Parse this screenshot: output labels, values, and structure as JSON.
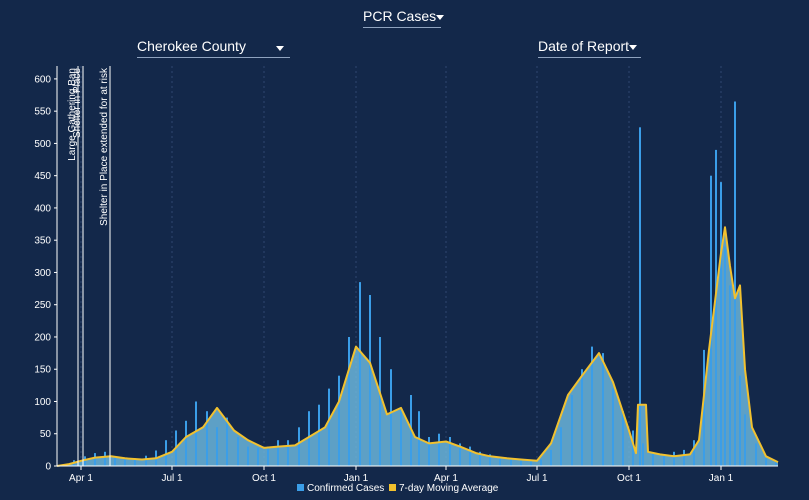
{
  "controls": {
    "metric": "PCR Cases",
    "county": "Cherokee County",
    "date_mode": "Date of Report"
  },
  "colors": {
    "background": "#13284a",
    "bars": "#3b9ee8",
    "area": "#6bb5dc",
    "average": "#f2c12e",
    "grid": "#2f4670",
    "axis": "#ffffff"
  },
  "chart_data": {
    "type": "bar",
    "x_start": "2020-03-08",
    "x_end": "2022-02-27",
    "xticks": [
      {
        "date": "2020-04-01",
        "label": "Apr 1"
      },
      {
        "date": "2020-07-01",
        "label": "Jul 1"
      },
      {
        "date": "2020-10-01",
        "label": "Oct 1"
      },
      {
        "date": "2021-01-01",
        "label": "Jan 1"
      },
      {
        "date": "2021-04-01",
        "label": "Apr 1"
      },
      {
        "date": "2021-07-01",
        "label": "Jul 1"
      },
      {
        "date": "2021-10-01",
        "label": "Oct 1"
      },
      {
        "date": "2022-01-01",
        "label": "Jan 1"
      }
    ],
    "ylim": [
      0,
      620
    ],
    "yticks": [
      0,
      50,
      100,
      150,
      200,
      250,
      300,
      350,
      400,
      450,
      500,
      550,
      600
    ],
    "grid": true,
    "legend_position": "bottom",
    "events": [
      {
        "date": "2020-03-29",
        "label": "Large Gathering Ban"
      },
      {
        "date": "2020-04-03",
        "label": "Shelter in Place"
      },
      {
        "date": "2020-04-30",
        "label": "Shelter in Place extended for at risk"
      }
    ],
    "series": [
      {
        "name": "Confirmed Cases",
        "style": "bar",
        "x": [
          "2020-03-15",
          "2020-03-25",
          "2020-04-05",
          "2020-04-15",
          "2020-04-25",
          "2020-05-05",
          "2020-05-15",
          "2020-05-25",
          "2020-06-05",
          "2020-06-15",
          "2020-06-25",
          "2020-07-05",
          "2020-07-15",
          "2020-07-25",
          "2020-08-05",
          "2020-08-15",
          "2020-08-25",
          "2020-09-05",
          "2020-09-15",
          "2020-09-25",
          "2020-10-05",
          "2020-10-15",
          "2020-10-25",
          "2020-11-05",
          "2020-11-15",
          "2020-11-25",
          "2020-12-05",
          "2020-12-15",
          "2020-12-25",
          "2021-01-05",
          "2021-01-15",
          "2021-01-25",
          "2021-02-05",
          "2021-02-15",
          "2021-02-25",
          "2021-03-05",
          "2021-03-15",
          "2021-03-25",
          "2021-04-05",
          "2021-04-15",
          "2021-04-25",
          "2021-05-05",
          "2021-05-15",
          "2021-05-25",
          "2021-06-05",
          "2021-06-15",
          "2021-06-25",
          "2021-07-05",
          "2021-07-15",
          "2021-07-25",
          "2021-08-05",
          "2021-08-15",
          "2021-08-25",
          "2021-09-05",
          "2021-09-15",
          "2021-09-25",
          "2021-10-05",
          "2021-10-12",
          "2021-10-15",
          "2021-10-25",
          "2021-11-05",
          "2021-11-15",
          "2021-11-25",
          "2021-12-05",
          "2021-12-15",
          "2021-12-22",
          "2021-12-27",
          "2022-01-01",
          "2022-01-05",
          "2022-01-10",
          "2022-01-15",
          "2022-01-20",
          "2022-01-25",
          "2022-02-05",
          "2022-02-15",
          "2022-02-25"
        ],
        "values": [
          3,
          9,
          15,
          20,
          22,
          14,
          12,
          12,
          16,
          24,
          40,
          55,
          70,
          100,
          85,
          60,
          75,
          45,
          30,
          28,
          30,
          40,
          40,
          60,
          85,
          95,
          120,
          140,
          200,
          285,
          265,
          200,
          150,
          90,
          110,
          85,
          45,
          50,
          45,
          35,
          30,
          22,
          18,
          14,
          12,
          10,
          8,
          10,
          25,
          60,
          110,
          150,
          185,
          175,
          120,
          85,
          55,
          525,
          35,
          20,
          15,
          22,
          25,
          40,
          180,
          450,
          490,
          440,
          340,
          280,
          565,
          140,
          80,
          35,
          12,
          6
        ]
      },
      {
        "name": "7-day Moving Average",
        "style": "line",
        "x": [
          "2020-03-08",
          "2020-03-20",
          "2020-04-01",
          "2020-04-15",
          "2020-05-01",
          "2020-05-15",
          "2020-06-01",
          "2020-06-15",
          "2020-07-01",
          "2020-07-15",
          "2020-08-01",
          "2020-08-15",
          "2020-09-01",
          "2020-09-15",
          "2020-10-01",
          "2020-10-15",
          "2020-11-01",
          "2020-11-15",
          "2020-12-01",
          "2020-12-15",
          "2021-01-01",
          "2021-01-15",
          "2021-02-01",
          "2021-02-15",
          "2021-03-01",
          "2021-03-15",
          "2021-04-01",
          "2021-04-15",
          "2021-05-01",
          "2021-05-15",
          "2021-06-01",
          "2021-06-15",
          "2021-07-01",
          "2021-07-15",
          "2021-08-01",
          "2021-08-15",
          "2021-09-01",
          "2021-09-15",
          "2021-10-01",
          "2021-10-08",
          "2021-10-10",
          "2021-10-18",
          "2021-10-20",
          "2021-11-01",
          "2021-11-15",
          "2021-12-01",
          "2021-12-10",
          "2021-12-20",
          "2022-01-01",
          "2022-01-05",
          "2022-01-10",
          "2022-01-15",
          "2022-01-20",
          "2022-01-25",
          "2022-02-01",
          "2022-02-15",
          "2022-02-27"
        ],
        "values": [
          0,
          3,
          8,
          13,
          15,
          12,
          10,
          12,
          22,
          45,
          60,
          90,
          55,
          40,
          28,
          30,
          32,
          45,
          60,
          100,
          185,
          160,
          80,
          90,
          45,
          35,
          38,
          30,
          20,
          15,
          12,
          10,
          8,
          35,
          110,
          140,
          175,
          130,
          55,
          20,
          95,
          95,
          22,
          18,
          15,
          18,
          40,
          180,
          330,
          370,
          310,
          260,
          280,
          150,
          60,
          15,
          6
        ]
      }
    ]
  }
}
